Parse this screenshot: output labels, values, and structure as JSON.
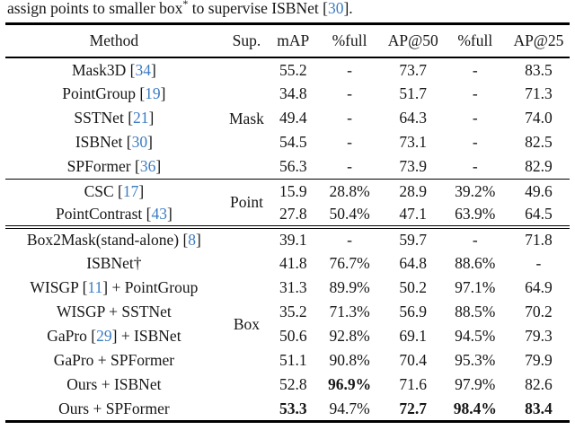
{
  "caption": {
    "prefix": "assign points to smaller box",
    "footnote_marker": "*",
    "middle": " to supervise ISBNet [",
    "cite": "30",
    "suffix": "]."
  },
  "colors": {
    "citation_blue": "#3c7cc2",
    "text": "#161616",
    "rule": "#000000"
  },
  "table": {
    "columns": [
      "Method",
      "Sup.",
      "mAP",
      "%full",
      "AP@50",
      "%full",
      "AP@25"
    ],
    "groups": [
      {
        "sup": "Mask",
        "rows": [
          {
            "method": {
              "prefix": "Mask3D ",
              "cite": "34",
              "suffix": ""
            },
            "values": [
              "55.2",
              "-",
              "73.7",
              "-",
              "83.5"
            ],
            "bold": []
          },
          {
            "method": {
              "prefix": "PointGroup ",
              "cite": "19",
              "suffix": ""
            },
            "values": [
              "34.8",
              "-",
              "51.7",
              "-",
              "71.3"
            ],
            "bold": []
          },
          {
            "method": {
              "prefix": "SSTNet ",
              "cite": "21",
              "suffix": ""
            },
            "values": [
              "49.4",
              "-",
              "64.3",
              "-",
              "74.0"
            ],
            "bold": []
          },
          {
            "method": {
              "prefix": "ISBNet ",
              "cite": "30",
              "suffix": ""
            },
            "values": [
              "54.5",
              "-",
              "73.1",
              "-",
              "82.5"
            ],
            "bold": []
          },
          {
            "method": {
              "prefix": "SPFormer ",
              "cite": "36",
              "suffix": ""
            },
            "values": [
              "56.3",
              "-",
              "73.9",
              "-",
              "82.9"
            ],
            "bold": []
          }
        ]
      },
      {
        "sup": "Point",
        "rows": [
          {
            "method": {
              "prefix": "CSC ",
              "cite": "17",
              "suffix": ""
            },
            "values": [
              "15.9",
              "28.8%",
              "28.9",
              "39.2%",
              "49.6"
            ],
            "bold": []
          },
          {
            "method": {
              "prefix": "PointContrast ",
              "cite": "43",
              "suffix": ""
            },
            "values": [
              "27.8",
              "50.4%",
              "47.1",
              "63.9%",
              "64.5"
            ],
            "bold": []
          }
        ]
      },
      {
        "sup": "Box",
        "rows": [
          {
            "method": {
              "prefix": "Box2Mask(stand-alone) ",
              "cite": "8",
              "suffix": ""
            },
            "values": [
              "39.1",
              "-",
              "59.7",
              "-",
              "71.8"
            ],
            "bold": []
          },
          {
            "method": {
              "prefix": "ISBNet†",
              "cite": "",
              "suffix": ""
            },
            "values": [
              "41.8",
              "76.7%",
              "64.8",
              "88.6%",
              "-"
            ],
            "bold": []
          },
          {
            "method": {
              "prefix": "WISGP ",
              "cite": "11",
              "suffix": " + PointGroup"
            },
            "values": [
              "31.3",
              "89.9%",
              "50.2",
              "97.1%",
              "64.9"
            ],
            "bold": []
          },
          {
            "method": {
              "prefix": "WISGP + SSTNet",
              "cite": "",
              "suffix": ""
            },
            "values": [
              "35.2",
              "71.3%",
              "56.9",
              "88.5%",
              "70.2"
            ],
            "bold": []
          },
          {
            "method": {
              "prefix": "GaPro ",
              "cite": "29",
              "suffix": " + ISBNet"
            },
            "values": [
              "50.6",
              "92.8%",
              "69.1",
              "94.5%",
              "79.3"
            ],
            "bold": []
          },
          {
            "method": {
              "prefix": "GaPro + SPFormer",
              "cite": "",
              "suffix": ""
            },
            "values": [
              "51.1",
              "90.8%",
              "70.4",
              "95.3%",
              "79.9"
            ],
            "bold": []
          },
          {
            "method": {
              "prefix": "Ours + ISBNet",
              "cite": "",
              "suffix": ""
            },
            "values": [
              "52.8",
              "96.9%",
              "71.6",
              "97.9%",
              "82.6"
            ],
            "bold": [
              1
            ]
          },
          {
            "method": {
              "prefix": "Ours + SPFormer",
              "cite": "",
              "suffix": ""
            },
            "values": [
              "53.3",
              "94.7%",
              "72.7",
              "98.4%",
              "83.4"
            ],
            "bold": [
              0,
              2,
              3,
              4
            ]
          }
        ]
      }
    ]
  }
}
